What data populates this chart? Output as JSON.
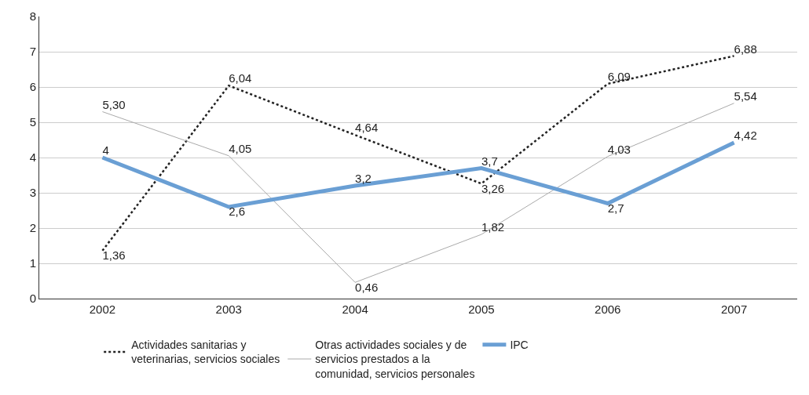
{
  "chart_data": {
    "type": "line",
    "categories": [
      "2002",
      "2003",
      "2004",
      "2005",
      "2006",
      "2007"
    ],
    "series": [
      {
        "name": "Actividades sanitarias y veterinarias, servicios sociales",
        "color": "#222222",
        "line_style": "dotted",
        "values": [
          1.36,
          6.04,
          4.64,
          3.26,
          6.09,
          6.88
        ],
        "value_labels": [
          "1,36",
          "6,04",
          "4,64",
          "3,26",
          "6,09",
          "6,88"
        ]
      },
      {
        "name": "Otras actividades sociales y de servicios prestados a la comunidad, servicios personales",
        "color": "#aaaaaa",
        "line_style": "solid",
        "values": [
          5.3,
          4.05,
          0.46,
          1.82,
          4.03,
          5.54
        ],
        "value_labels": [
          "5,30",
          "4,05",
          "0,46",
          "1,82",
          "4,03",
          "5,54"
        ]
      },
      {
        "name": "IPC",
        "color": "#6a9fd4",
        "line_style": "solid",
        "values": [
          4,
          2.6,
          3.2,
          3.7,
          2.7,
          4.42
        ],
        "value_labels": [
          "4",
          "2,6",
          "3,2",
          "3,7",
          "2,7",
          "4,42"
        ]
      }
    ],
    "ylim": [
      0,
      8
    ],
    "yticks": [
      0,
      1,
      2,
      3,
      4,
      5,
      6,
      7,
      8
    ],
    "grid": "y",
    "legend": "bottom",
    "marker": "none"
  }
}
